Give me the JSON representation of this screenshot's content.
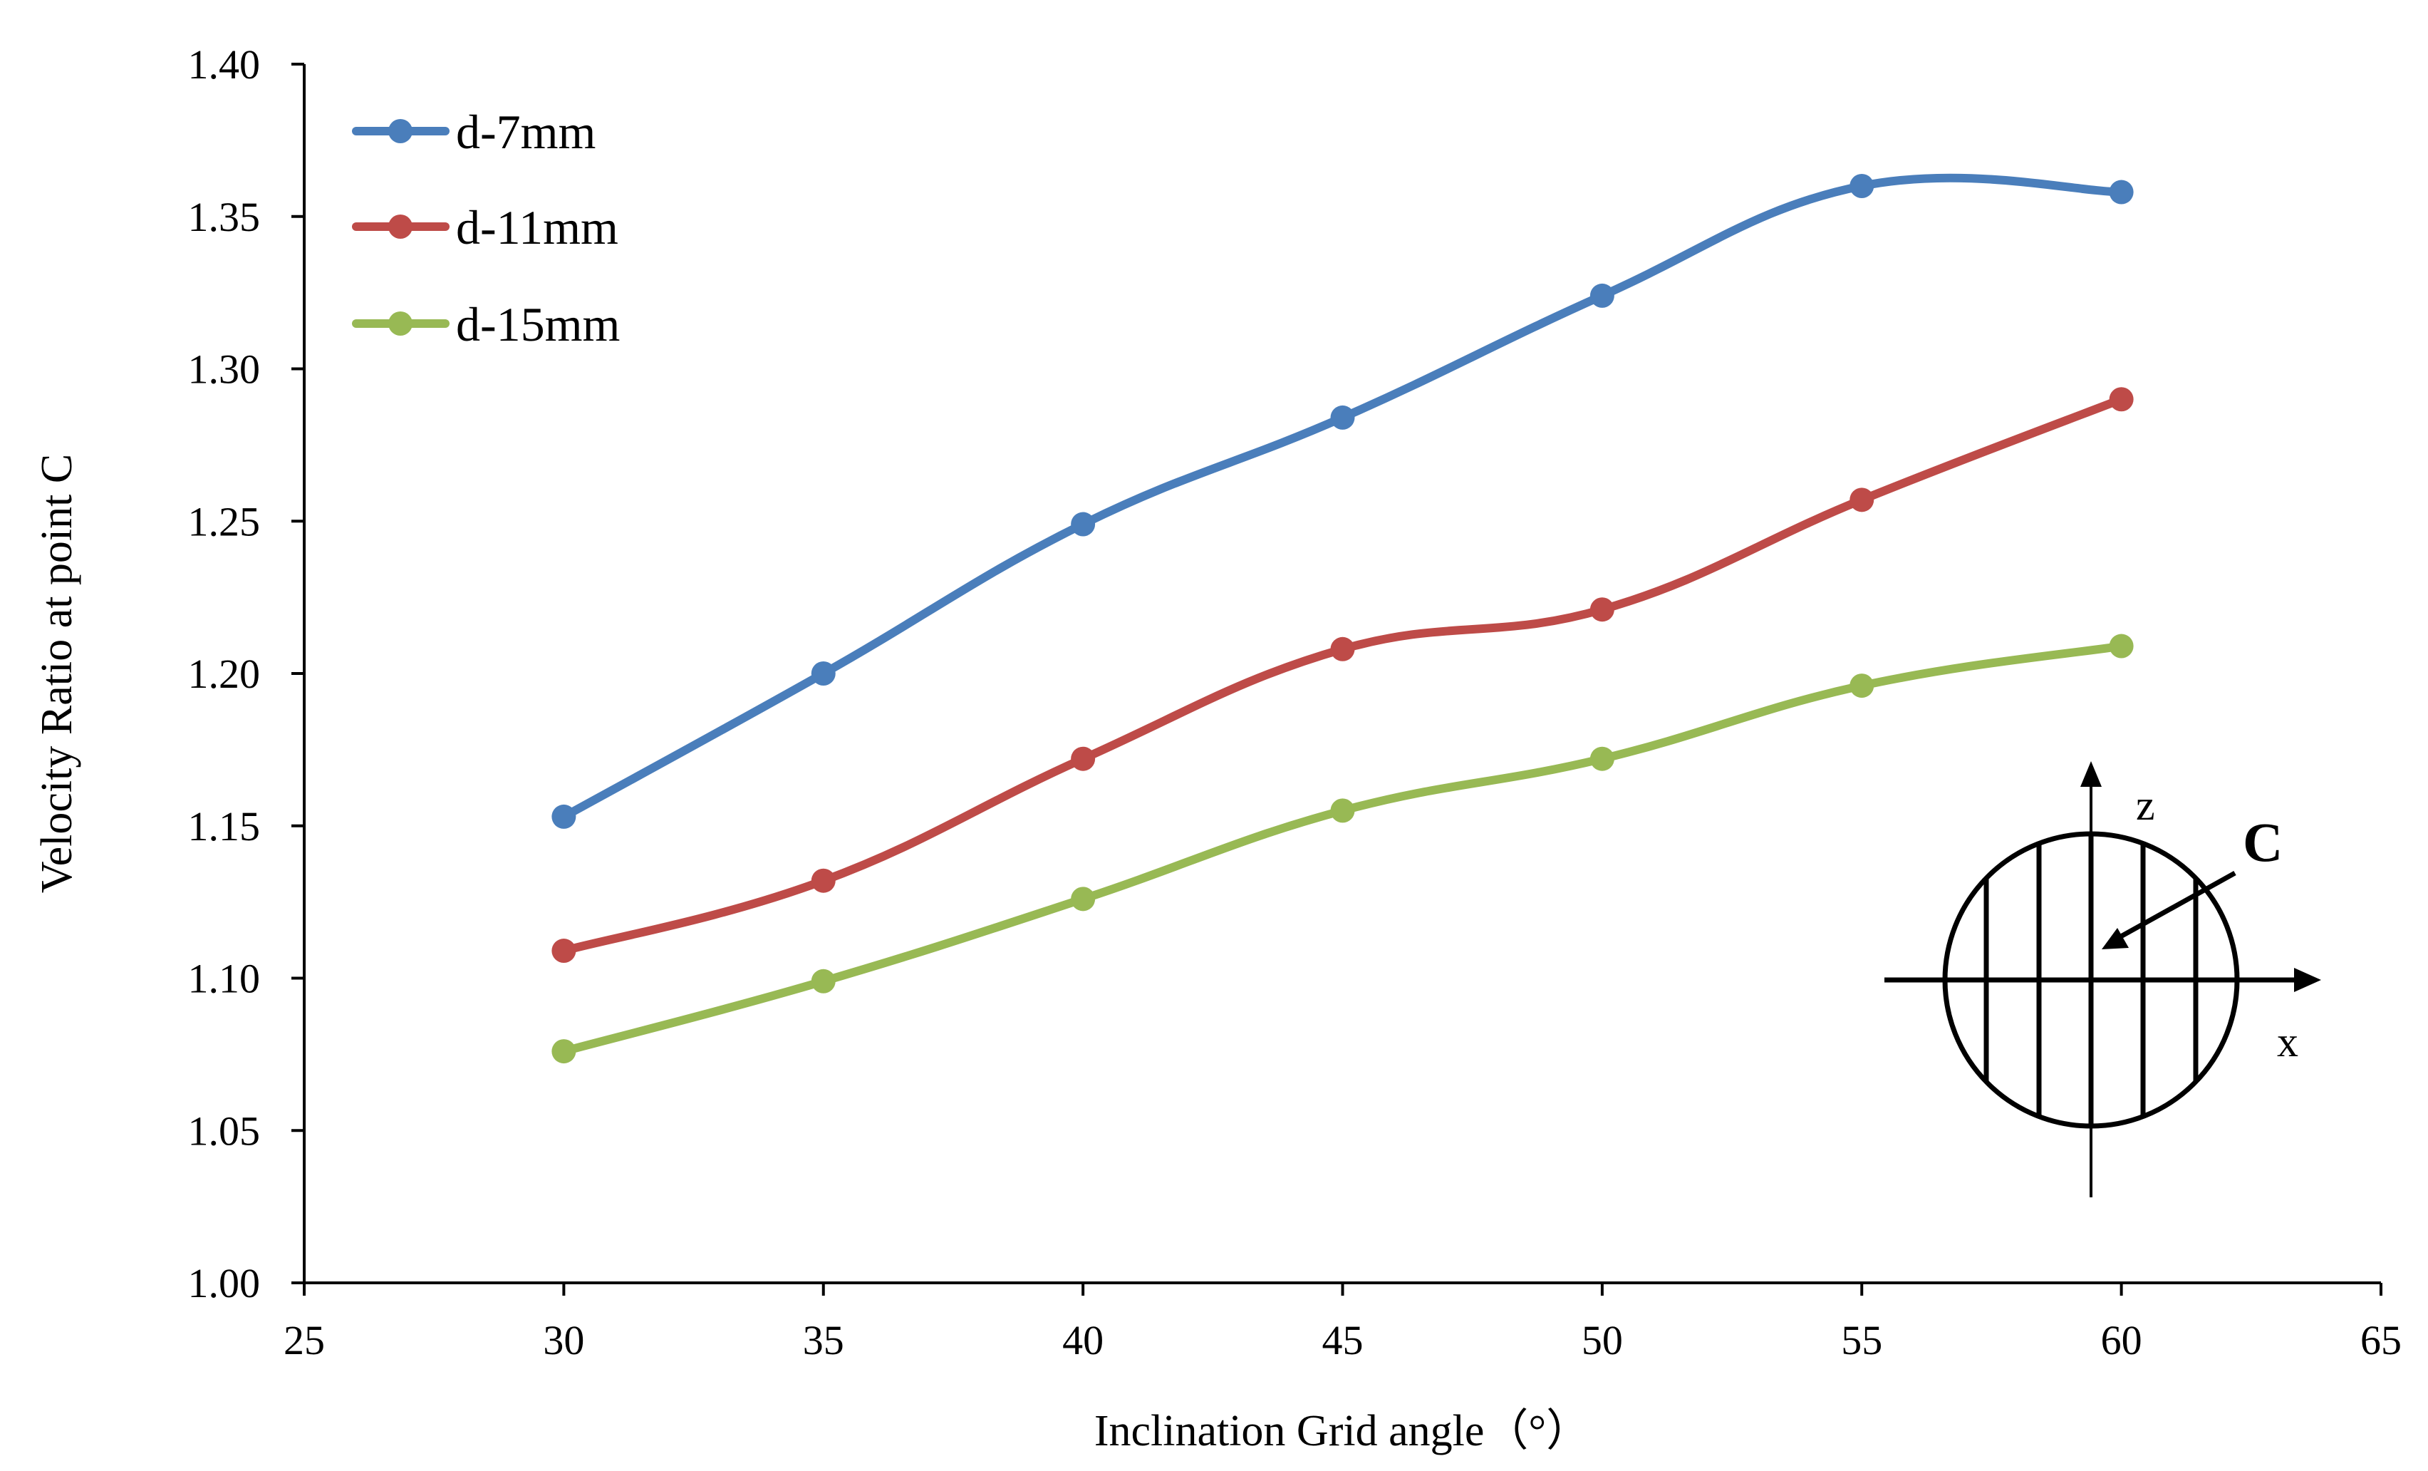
{
  "chart_data": {
    "type": "line",
    "title": "",
    "xlabel": "Inclination Grid angle（°）",
    "ylabel": "Velocity Ratio at point C",
    "xlim": [
      25,
      65
    ],
    "ylim": [
      1.0,
      1.4
    ],
    "xticks": [
      "25",
      "30",
      "35",
      "40",
      "45",
      "50",
      "55",
      "60",
      "65"
    ],
    "yticks": [
      "1.00",
      "1.05",
      "1.10",
      "1.15",
      "1.20",
      "1.25",
      "1.30",
      "1.35",
      "1.40"
    ],
    "grid": false,
    "legend_position": "top-left",
    "x": [
      30,
      35,
      40,
      45,
      50,
      55,
      60
    ],
    "series": [
      {
        "name": "d-7mm",
        "color": "#4a7ebb",
        "values": [
          1.153,
          1.2,
          1.249,
          1.284,
          1.324,
          1.36,
          1.358
        ]
      },
      {
        "name": "d-11mm",
        "color": "#be4b48",
        "values": [
          1.109,
          1.132,
          1.172,
          1.208,
          1.221,
          1.257,
          1.29
        ]
      },
      {
        "name": "d-15mm",
        "color": "#98b954",
        "values": [
          1.076,
          1.099,
          1.126,
          1.155,
          1.172,
          1.196,
          1.209
        ]
      }
    ],
    "inset": {
      "point_label": "C",
      "x_axis_label": "x",
      "z_axis_label": "z"
    }
  }
}
